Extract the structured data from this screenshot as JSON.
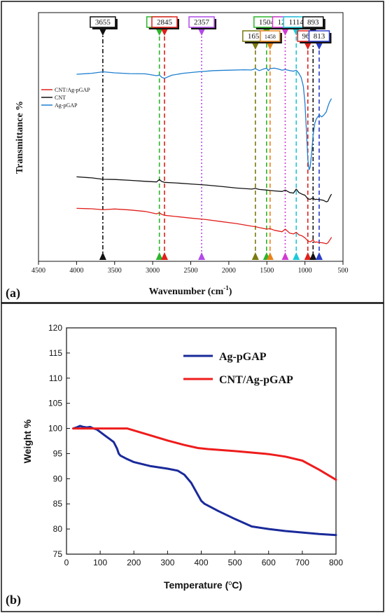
{
  "chart_data": [
    {
      "panel_label": "(a)",
      "type": "line",
      "xlabel": "Wavenumber (cm",
      "xlabel_sup": "-1",
      "xlabel_end": ")",
      "ylabel": "Transmittance %",
      "xlim": [
        4500,
        500
      ],
      "xticks": [
        4500,
        4000,
        3500,
        3000,
        2500,
        2000,
        1500,
        1000,
        500
      ],
      "legend": {
        "position": "top-left",
        "entries": [
          {
            "name": "CNT/Ag-pGAP",
            "color": "#e0201c"
          },
          {
            "name": "CNT",
            "color": "#111111"
          },
          {
            "name": "Ag-pGAP",
            "color": "#1f7fd0"
          }
        ]
      },
      "series": [
        {
          "name": "Ag-pGAP",
          "color": "#1f7fd0",
          "x": [
            4000,
            3800,
            3650,
            3500,
            3300,
            3100,
            2950,
            2912,
            2880,
            2845,
            2750,
            2600,
            2400,
            2200,
            2000,
            1800,
            1700,
            1651,
            1600,
            1550,
            1504,
            1480,
            1458,
            1400,
            1350,
            1300,
            1259,
            1200,
            1150,
            1114,
            1080,
            1050,
            1020,
            1000,
            980,
            962,
            945,
            930,
            910,
            893,
            870,
            850,
            813,
            780,
            750,
            720,
            700,
            680,
            660,
            650
          ],
          "y": [
            0.9,
            0.905,
            0.912,
            0.907,
            0.903,
            0.902,
            0.893,
            0.896,
            0.885,
            0.88,
            0.895,
            0.905,
            0.912,
            0.918,
            0.92,
            0.922,
            0.921,
            0.928,
            0.918,
            0.925,
            0.93,
            0.918,
            0.928,
            0.93,
            0.926,
            0.92,
            0.923,
            0.918,
            0.915,
            0.92,
            0.905,
            0.885,
            0.84,
            0.76,
            0.62,
            0.48,
            0.43,
            0.445,
            0.52,
            0.6,
            0.66,
            0.68,
            0.7,
            0.69,
            0.7,
            0.715,
            0.74,
            0.76,
            0.775,
            0.78
          ]
        },
        {
          "name": "CNT",
          "color": "#111111",
          "x": [
            4000,
            3800,
            3655,
            3500,
            3300,
            3100,
            2950,
            2912,
            2880,
            2845,
            2700,
            2500,
            2300,
            2100,
            1900,
            1700,
            1651,
            1600,
            1504,
            1458,
            1400,
            1300,
            1259,
            1200,
            1150,
            1114,
            1080,
            1040,
            1000,
            962,
            930,
            893,
            870,
            850,
            813,
            760,
            720,
            700,
            680,
            660,
            650
          ],
          "y": [
            0.395,
            0.39,
            0.383,
            0.382,
            0.378,
            0.373,
            0.37,
            0.382,
            0.372,
            0.368,
            0.365,
            0.36,
            0.355,
            0.348,
            0.34,
            0.335,
            0.338,
            0.333,
            0.33,
            0.328,
            0.326,
            0.323,
            0.33,
            0.318,
            0.315,
            0.335,
            0.318,
            0.31,
            0.305,
            0.287,
            0.284,
            0.292,
            0.283,
            0.285,
            0.283,
            0.28,
            0.272,
            0.275,
            0.29,
            0.305,
            0.31
          ]
        },
        {
          "name": "CNT/Ag-pGAP",
          "color": "#e0201c",
          "x": [
            4000,
            3800,
            3655,
            3500,
            3300,
            3100,
            2950,
            2912,
            2880,
            2845,
            2700,
            2500,
            2300,
            2100,
            1900,
            1700,
            1651,
            1600,
            1504,
            1458,
            1400,
            1300,
            1259,
            1200,
            1150,
            1114,
            1080,
            1040,
            1000,
            962,
            930,
            893,
            870,
            850,
            813,
            760,
            720,
            700,
            680,
            660,
            650
          ],
          "y": [
            0.24,
            0.238,
            0.233,
            0.237,
            0.232,
            0.225,
            0.213,
            0.218,
            0.21,
            0.206,
            0.2,
            0.192,
            0.185,
            0.175,
            0.165,
            0.152,
            0.15,
            0.145,
            0.138,
            0.14,
            0.132,
            0.125,
            0.138,
            0.118,
            0.114,
            0.122,
            0.11,
            0.105,
            0.095,
            0.08,
            0.075,
            0.085,
            0.072,
            0.075,
            0.072,
            0.07,
            0.066,
            0.07,
            0.08,
            0.092,
            0.098
          ]
        }
      ],
      "markers": [
        {
          "label": "3655",
          "x": 3655,
          "color": "#111111"
        },
        {
          "label": "2912",
          "x": 2912,
          "color": "#2ab52a"
        },
        {
          "label": "2845",
          "x": 2845,
          "color": "#e0201c"
        },
        {
          "label": "2357",
          "x": 2357,
          "color": "#b24ae8"
        },
        {
          "label": "1651",
          "x": 1651,
          "color": "#7a7a10"
        },
        {
          "label": "1504",
          "x": 1504,
          "color": "#2ab52a"
        },
        {
          "label": "1458",
          "x": 1458,
          "color": "#e8821a"
        },
        {
          "label": "1259",
          "x": 1259,
          "color": "#d23ad2"
        },
        {
          "label": "1114",
          "x": 1114,
          "color": "#1ec8d8"
        },
        {
          "label": "962",
          "x": 962,
          "color": "#e0201c"
        },
        {
          "label": "893",
          "x": 893,
          "color": "#111111"
        },
        {
          "label": "813",
          "x": 813,
          "color": "#2a3cc8"
        }
      ],
      "grid": false
    },
    {
      "panel_label": "(b)",
      "type": "line",
      "xlabel": "Temperature (",
      "xlabel_deg": "o",
      "xlabel_end": "C)",
      "ylabel": "Weight %",
      "xlim": [
        0,
        800
      ],
      "ylim": [
        75,
        120
      ],
      "xticks": [
        0,
        100,
        200,
        300,
        400,
        500,
        600,
        700,
        800
      ],
      "yticks": [
        75,
        80,
        85,
        90,
        95,
        100,
        105,
        110,
        115,
        120
      ],
      "legend": {
        "position": "top-right",
        "entries": [
          {
            "name": "Ag-pGAP",
            "color": "#1a2a9a"
          },
          {
            "name": "CNT/Ag-pGAP",
            "color": "#ee1c1c"
          }
        ]
      },
      "series": [
        {
          "name": "Ag-pGAP",
          "color": "#1a2a9a",
          "x": [
            20,
            30,
            40,
            50,
            60,
            70,
            80,
            90,
            100,
            110,
            120,
            130,
            140,
            150,
            155,
            160,
            180,
            200,
            250,
            300,
            330,
            350,
            370,
            390,
            400,
            410,
            430,
            450,
            500,
            550,
            600,
            650,
            700,
            750,
            800
          ],
          "y": [
            100,
            100.2,
            100.5,
            100.3,
            100.2,
            100.3,
            100,
            99.8,
            99.3,
            98.8,
            98.3,
            97.8,
            97.3,
            96.0,
            95.0,
            94.6,
            93.9,
            93.3,
            92.5,
            92.0,
            91.6,
            90.8,
            89.2,
            86.8,
            85.6,
            85.0,
            84.3,
            83.6,
            82.0,
            80.5,
            80.0,
            79.6,
            79.3,
            79.0,
            78.8
          ]
        },
        {
          "name": "CNT/Ag-pGAP",
          "color": "#ee1c1c",
          "x": [
            20,
            60,
            100,
            140,
            180,
            200,
            250,
            300,
            350,
            390,
            420,
            500,
            550,
            600,
            650,
            700,
            750,
            800
          ],
          "y": [
            100,
            100,
            100,
            100,
            100,
            99.6,
            98.6,
            97.6,
            96.7,
            96.1,
            95.9,
            95.5,
            95.2,
            94.9,
            94.4,
            93.6,
            91.8,
            89.8
          ]
        }
      ],
      "grid": false
    }
  ]
}
